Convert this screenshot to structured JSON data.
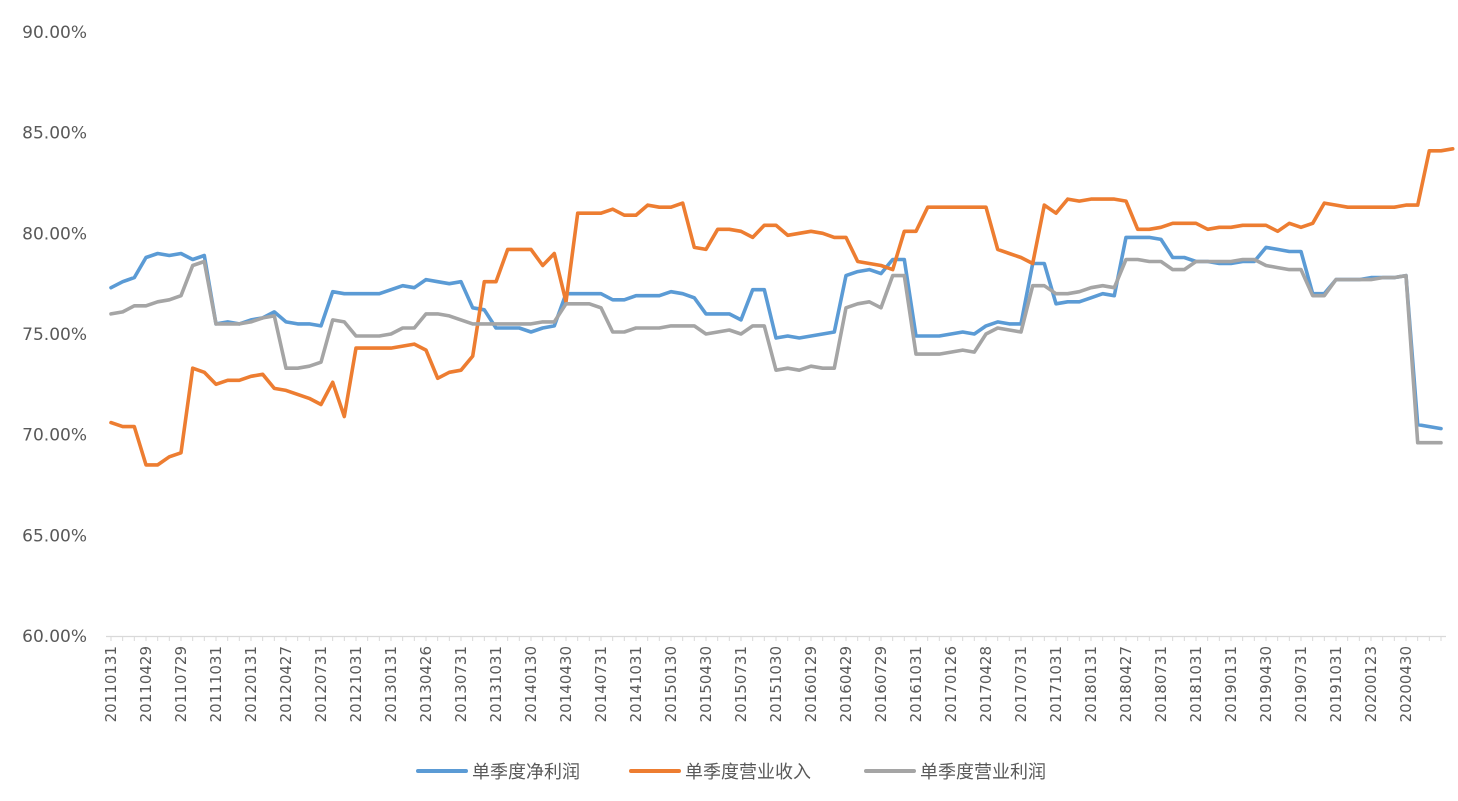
{
  "chart_data": {
    "type": "line",
    "title": "",
    "xlabel": "",
    "ylabel": "",
    "ylim": [
      0.6,
      0.9
    ],
    "y_ticks": [
      "60.00%",
      "65.00%",
      "70.00%",
      "75.00%",
      "80.00%",
      "85.00%",
      "90.00%"
    ],
    "grid": false,
    "legend_position": "bottom",
    "x_tick_labels": [
      "20110131",
      "20110429",
      "20110729",
      "20111031",
      "20120131",
      "20120427",
      "20120731",
      "20121031",
      "20130131",
      "20130426",
      "20130731",
      "20131031",
      "20140130",
      "20140430",
      "20140731",
      "20141031",
      "20150130",
      "20150430",
      "20150731",
      "20151030",
      "20160129",
      "20160429",
      "20160729",
      "20161031",
      "20170126",
      "20170428",
      "20170731",
      "20171031",
      "20180131",
      "20180427",
      "20180731",
      "20181031",
      "20190131",
      "20190430",
      "20190731",
      "20191031",
      "20200123",
      "20200430"
    ],
    "series": [
      {
        "name": "单季度净利润",
        "color": "#5b9bd5",
        "values": [
          0.773,
          0.776,
          0.778,
          0.788,
          0.79,
          0.789,
          0.79,
          0.787,
          0.789,
          0.755,
          0.756,
          0.755,
          0.757,
          0.758,
          0.761,
          0.756,
          0.755,
          0.755,
          0.754,
          0.771,
          0.77,
          0.77,
          0.77,
          0.77,
          0.772,
          0.774,
          0.773,
          0.777,
          0.776,
          0.775,
          0.776,
          0.763,
          0.762,
          0.753,
          0.753,
          0.753,
          0.751,
          0.753,
          0.754,
          0.77,
          0.77,
          0.77,
          0.77,
          0.767,
          0.767,
          0.769,
          0.769,
          0.769,
          0.771,
          0.77,
          0.768,
          0.76,
          0.76,
          0.76,
          0.757,
          0.772,
          0.772,
          0.748,
          0.749,
          0.748,
          0.749,
          0.75,
          0.751,
          0.779,
          0.781,
          0.782,
          0.78,
          0.787,
          0.787,
          0.749,
          0.749,
          0.749,
          0.75,
          0.751,
          0.75,
          0.754,
          0.756,
          0.755,
          0.755,
          0.785,
          0.785,
          0.765,
          0.766,
          0.766,
          0.768,
          0.77,
          0.769,
          0.798,
          0.798,
          0.798,
          0.797,
          0.788,
          0.788,
          0.786,
          0.786,
          0.785,
          0.785,
          0.786,
          0.786,
          0.793,
          0.792,
          0.791,
          0.791,
          0.77,
          0.77,
          0.777,
          0.777,
          0.777,
          0.778,
          0.778,
          0.778,
          0.779,
          0.705,
          0.704,
          0.703
        ]
      },
      {
        "name": "单季度营业收入",
        "color": "#ed7d31",
        "values": [
          0.706,
          0.704,
          0.704,
          0.685,
          0.685,
          0.689,
          0.691,
          0.733,
          0.731,
          0.725,
          0.727,
          0.727,
          0.729,
          0.73,
          0.723,
          0.722,
          0.72,
          0.718,
          0.715,
          0.726,
          0.709,
          0.743,
          0.743,
          0.743,
          0.743,
          0.744,
          0.745,
          0.742,
          0.728,
          0.731,
          0.732,
          0.739,
          0.776,
          0.776,
          0.792,
          0.792,
          0.792,
          0.784,
          0.79,
          0.766,
          0.81,
          0.81,
          0.81,
          0.812,
          0.809,
          0.809,
          0.814,
          0.813,
          0.813,
          0.815,
          0.793,
          0.792,
          0.802,
          0.802,
          0.801,
          0.798,
          0.804,
          0.804,
          0.799,
          0.8,
          0.801,
          0.8,
          0.798,
          0.798,
          0.786,
          0.785,
          0.784,
          0.782,
          0.801,
          0.801,
          0.813,
          0.813,
          0.813,
          0.813,
          0.813,
          0.813,
          0.792,
          0.79,
          0.788,
          0.785,
          0.814,
          0.81,
          0.817,
          0.816,
          0.817,
          0.817,
          0.817,
          0.816,
          0.802,
          0.802,
          0.803,
          0.805,
          0.805,
          0.805,
          0.802,
          0.803,
          0.803,
          0.804,
          0.804,
          0.804,
          0.801,
          0.805,
          0.803,
          0.805,
          0.815,
          0.814,
          0.813,
          0.813,
          0.813,
          0.813,
          0.813,
          0.814,
          0.814,
          0.841,
          0.841,
          0.842
        ]
      },
      {
        "name": "单季度营业利润",
        "color": "#a5a5a5",
        "values": [
          0.76,
          0.761,
          0.764,
          0.764,
          0.766,
          0.767,
          0.769,
          0.784,
          0.786,
          0.755,
          0.755,
          0.755,
          0.756,
          0.758,
          0.759,
          0.733,
          0.733,
          0.734,
          0.736,
          0.757,
          0.756,
          0.749,
          0.749,
          0.749,
          0.75,
          0.753,
          0.753,
          0.76,
          0.76,
          0.759,
          0.757,
          0.755,
          0.755,
          0.755,
          0.755,
          0.755,
          0.755,
          0.756,
          0.756,
          0.765,
          0.765,
          0.765,
          0.763,
          0.751,
          0.751,
          0.753,
          0.753,
          0.753,
          0.754,
          0.754,
          0.754,
          0.75,
          0.751,
          0.752,
          0.75,
          0.754,
          0.754,
          0.732,
          0.733,
          0.732,
          0.734,
          0.733,
          0.733,
          0.763,
          0.765,
          0.766,
          0.763,
          0.779,
          0.779,
          0.74,
          0.74,
          0.74,
          0.741,
          0.742,
          0.741,
          0.75,
          0.753,
          0.752,
          0.751,
          0.774,
          0.774,
          0.77,
          0.77,
          0.771,
          0.773,
          0.774,
          0.773,
          0.787,
          0.787,
          0.786,
          0.786,
          0.782,
          0.782,
          0.786,
          0.786,
          0.786,
          0.786,
          0.787,
          0.787,
          0.784,
          0.783,
          0.782,
          0.782,
          0.769,
          0.769,
          0.777,
          0.777,
          0.777,
          0.777,
          0.778,
          0.778,
          0.779,
          0.696,
          0.696,
          0.696
        ]
      }
    ]
  }
}
